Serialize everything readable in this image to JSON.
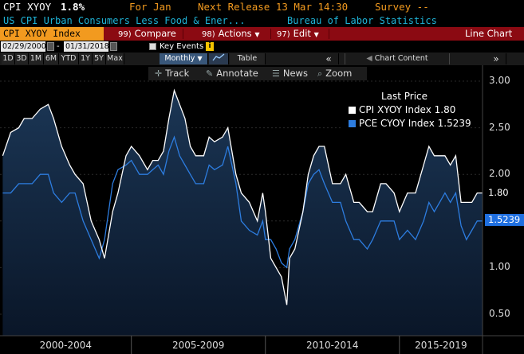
{
  "header": {
    "ticker": "CPI XYOY",
    "value": "1.8%",
    "period": "For Jan",
    "next_release": "Next Release 13 Mar 14:30",
    "survey": "Survey --",
    "description": "US CPI Urban Consumers Less Food & Ener...",
    "source": "Bureau of Labor Statistics"
  },
  "function_bar": {
    "security": "CPI XYOY Index",
    "compare_num": "99)",
    "compare": "Compare",
    "actions_num": "98)",
    "actions": "Actions",
    "edit_num": "97)",
    "edit": "Edit",
    "chart_type": "Line Chart"
  },
  "dates": {
    "start": "02/29/2000",
    "end": "01/31/2018",
    "separator": "-",
    "key_events": "Key Events"
  },
  "ranges": [
    "1D",
    "3D",
    "1M",
    "6M",
    "YTD",
    "1Y",
    "5Y",
    "Max"
  ],
  "frequency": "Monthly",
  "table_label": "Table",
  "nav_arrows_left": "«",
  "nav_arrows_right": "»",
  "chart_content": "Chart Content",
  "tools": {
    "track": "Track",
    "annotate": "Annotate",
    "news": "News",
    "zoom": "Zoom"
  },
  "legend": {
    "title": "Last Price",
    "series1": "CPI XYOY Index  1.80",
    "series2": "PCE CYOY Index  1.5239"
  },
  "last_labels": {
    "cpi": "1.80",
    "pce": "1.5239"
  },
  "colors": {
    "cpi": "#ffffff",
    "pce": "#2d7de0",
    "function_bar": "#8b0a12",
    "ticker_box": "#f29a1f",
    "header_orange": "#f29a1f",
    "header_cyan": "#1fb4d8"
  },
  "chart_data": {
    "type": "line",
    "title": "",
    "xlabel": "",
    "ylabel": "",
    "ylim": [
      0.4,
      3.1
    ],
    "yticks": [
      0.5,
      1.0,
      1.5,
      2.0,
      2.5,
      3.0
    ],
    "ytick_labels": [
      "0.50",
      "1.00",
      "1.50",
      "2.00",
      "2.50",
      "3.00"
    ],
    "x_period_labels": [
      "2000-2004",
      "2005-2009",
      "2010-2014",
      "2015-2019"
    ],
    "x_range": [
      2000.1,
      2018.1
    ],
    "series": [
      {
        "name": "CPI XYOY Index",
        "x": [
          2000.2,
          2000.5,
          2000.8,
          2001.0,
          2001.3,
          2001.6,
          2001.9,
          2002.1,
          2002.4,
          2002.7,
          2002.9,
          2003.2,
          2003.5,
          2003.8,
          2004.0,
          2004.3,
          2004.5,
          2004.8,
          2005.0,
          2005.3,
          2005.6,
          2005.8,
          2006.0,
          2006.2,
          2006.4,
          2006.6,
          2006.8,
          2007.0,
          2007.2,
          2007.4,
          2007.7,
          2007.9,
          2008.1,
          2008.4,
          2008.6,
          2008.9,
          2009.1,
          2009.4,
          2009.7,
          2009.9,
          2010.0,
          2010.2,
          2010.4,
          2010.6,
          2010.8,
          2010.9,
          2011.1,
          2011.4,
          2011.6,
          2011.8,
          2012.0,
          2012.2,
          2012.5,
          2012.8,
          2013.0,
          2013.3,
          2013.5,
          2013.8,
          2014.0,
          2014.3,
          2014.5,
          2014.8,
          2015.0,
          2015.3,
          2015.6,
          2015.9,
          2016.1,
          2016.3,
          2016.5,
          2016.7,
          2016.9,
          2017.1,
          2017.3,
          2017.5,
          2017.7,
          2017.9,
          2018.1
        ],
        "values": [
          2.2,
          2.45,
          2.5,
          2.6,
          2.6,
          2.7,
          2.75,
          2.6,
          2.3,
          2.1,
          2.0,
          1.9,
          1.5,
          1.3,
          1.1,
          1.6,
          1.8,
          2.2,
          2.3,
          2.2,
          2.05,
          2.15,
          2.15,
          2.25,
          2.6,
          2.9,
          2.75,
          2.6,
          2.3,
          2.2,
          2.2,
          2.4,
          2.35,
          2.4,
          2.5,
          2.0,
          1.8,
          1.7,
          1.5,
          1.8,
          1.6,
          1.1,
          1.0,
          0.9,
          0.6,
          1.1,
          1.2,
          1.6,
          2.0,
          2.2,
          2.3,
          2.3,
          1.9,
          1.9,
          2.0,
          1.7,
          1.7,
          1.6,
          1.6,
          1.9,
          1.9,
          1.8,
          1.6,
          1.8,
          1.8,
          2.1,
          2.3,
          2.2,
          2.2,
          2.2,
          2.1,
          2.2,
          1.7,
          1.7,
          1.7,
          1.8,
          1.8
        ]
      },
      {
        "name": "PCE CYOY Index",
        "x": [
          2000.2,
          2000.5,
          2000.8,
          2001.0,
          2001.3,
          2001.6,
          2001.9,
          2002.1,
          2002.4,
          2002.7,
          2002.9,
          2003.2,
          2003.5,
          2003.8,
          2004.0,
          2004.3,
          2004.5,
          2004.8,
          2005.0,
          2005.3,
          2005.6,
          2005.8,
          2006.0,
          2006.2,
          2006.4,
          2006.6,
          2006.8,
          2007.0,
          2007.2,
          2007.4,
          2007.7,
          2007.9,
          2008.1,
          2008.4,
          2008.6,
          2008.9,
          2009.1,
          2009.4,
          2009.7,
          2009.9,
          2010.0,
          2010.2,
          2010.4,
          2010.6,
          2010.8,
          2010.9,
          2011.1,
          2011.4,
          2011.6,
          2011.8,
          2012.0,
          2012.2,
          2012.5,
          2012.8,
          2013.0,
          2013.3,
          2013.5,
          2013.8,
          2014.0,
          2014.3,
          2014.5,
          2014.8,
          2015.0,
          2015.3,
          2015.6,
          2015.9,
          2016.1,
          2016.3,
          2016.5,
          2016.7,
          2016.9,
          2017.1,
          2017.3,
          2017.5,
          2017.7,
          2017.9,
          2018.1
        ],
        "values": [
          1.8,
          1.8,
          1.9,
          1.9,
          1.9,
          2.0,
          2.0,
          1.8,
          1.7,
          1.8,
          1.8,
          1.5,
          1.3,
          1.1,
          1.3,
          1.9,
          2.05,
          2.1,
          2.15,
          2.0,
          2.0,
          2.05,
          2.1,
          2.0,
          2.25,
          2.4,
          2.2,
          2.1,
          2.0,
          1.9,
          1.9,
          2.1,
          2.05,
          2.1,
          2.3,
          1.9,
          1.5,
          1.4,
          1.35,
          1.5,
          1.3,
          1.3,
          1.2,
          1.05,
          1.0,
          1.2,
          1.3,
          1.6,
          1.9,
          2.0,
          2.05,
          1.9,
          1.7,
          1.7,
          1.5,
          1.3,
          1.3,
          1.2,
          1.3,
          1.5,
          1.5,
          1.5,
          1.3,
          1.4,
          1.3,
          1.5,
          1.7,
          1.6,
          1.7,
          1.8,
          1.7,
          1.8,
          1.45,
          1.3,
          1.4,
          1.5,
          1.5
        ]
      }
    ],
    "grid": true,
    "legend_position": "top-right"
  }
}
